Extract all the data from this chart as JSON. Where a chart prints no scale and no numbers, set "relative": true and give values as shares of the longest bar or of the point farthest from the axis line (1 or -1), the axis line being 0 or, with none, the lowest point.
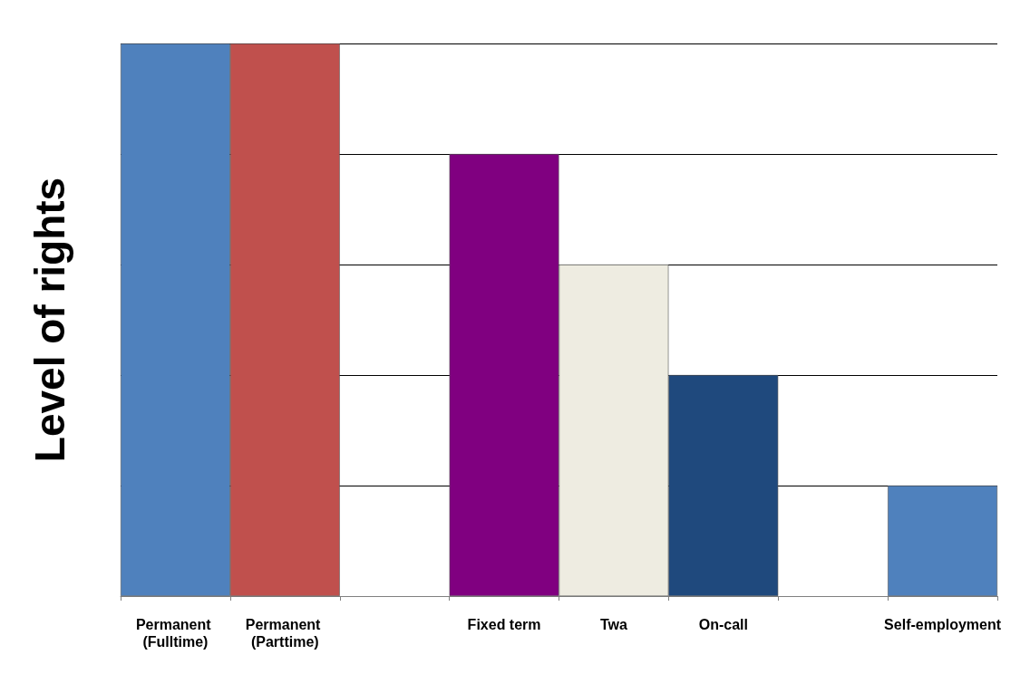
{
  "chart_data": {
    "type": "bar",
    "relative": true,
    "ylabel": "Level of rights",
    "categories": [
      "Permanent (Fulltime)",
      "Permanent (Parttime)",
      null,
      "Fixed term",
      "Twa",
      "On-call",
      null,
      "Self-employment"
    ],
    "values": [
      1,
      1,
      null,
      0.8,
      0.6,
      0.4,
      null,
      0.2
    ],
    "colors": [
      "#4f81bd",
      "#c0504d",
      "#ffffff",
      "#800080",
      "#eeece1",
      "#1f497d",
      "#ffffff",
      "#4f81bd"
    ],
    "grid": "y"
  }
}
